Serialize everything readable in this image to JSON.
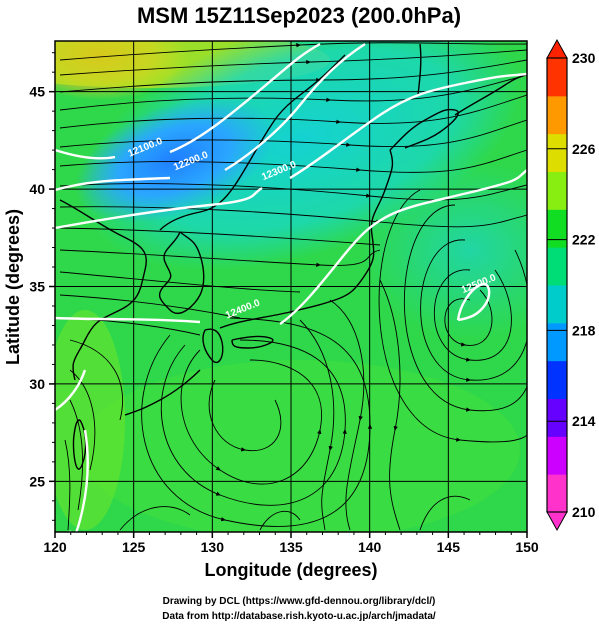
{
  "title": "MSM 15Z11Sep2023 (200.0hPa)",
  "x_axis": {
    "label": "Longitude (degrees)",
    "ticks": [
      120,
      125,
      130,
      135,
      140,
      145,
      150
    ],
    "range": [
      120,
      150
    ]
  },
  "y_axis": {
    "label": "Latitude  (degrees)",
    "ticks": [
      25,
      30,
      35,
      40,
      45
    ],
    "range": [
      22.4,
      47.6
    ]
  },
  "colorbar": {
    "ticks": [
      210,
      214,
      218,
      222,
      226,
      230
    ],
    "range": [
      210,
      230
    ],
    "colors": [
      "#ff33cc",
      "#cc00ff",
      "#6600ff",
      "#0033ff",
      "#0099ff",
      "#00cccc",
      "#00dd77",
      "#11dd22",
      "#88ee11",
      "#dddd00",
      "#ff9900",
      "#ff3300"
    ]
  },
  "contour_labels": [
    {
      "text": "12100.0",
      "lon": 125.8,
      "lat": 42.0
    },
    {
      "text": "12200.0",
      "lon": 128.7,
      "lat": 41.3
    },
    {
      "text": "12300.0",
      "lon": 134.3,
      "lat": 40.8
    },
    {
      "text": "12400.0",
      "lon": 132.0,
      "lat": 33.7
    },
    {
      "text": "12500.0",
      "lon": 147.0,
      "lat": 35.0
    }
  ],
  "footer": {
    "line1": "Drawing by DCL (https://www.gfd-dennou.org/library/dcl/)",
    "line2": "Data from http://database.rish.kyoto-u.ac.jp/arch/jmadata/"
  }
}
